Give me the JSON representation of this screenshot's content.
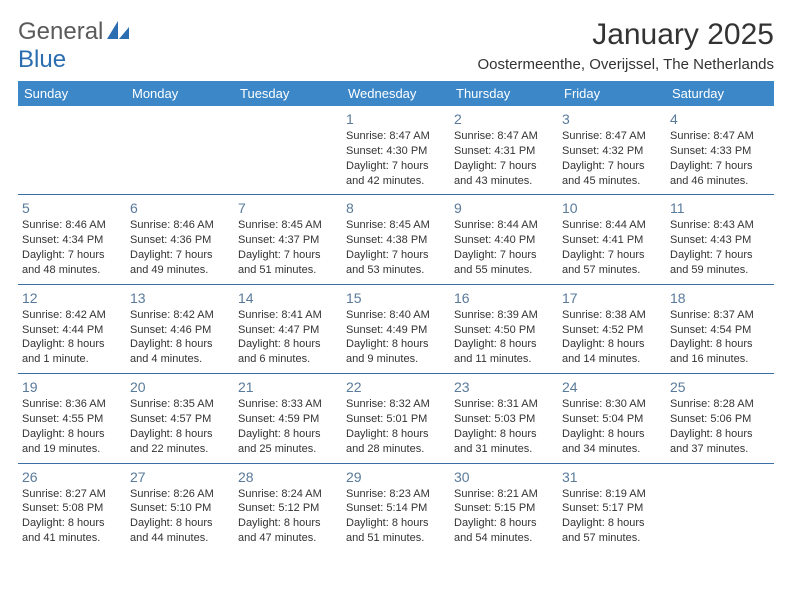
{
  "brand": {
    "part1": "General",
    "part2": "Blue"
  },
  "title": "January 2025",
  "location": "Oostermeenthe, Overijssel, The Netherlands",
  "colors": {
    "header_bg": "#3b87c8",
    "header_text": "#ffffff",
    "row_border": "#3b6ea5",
    "daynum": "#5a7a9a",
    "body_text": "#333333",
    "logo_gray": "#5a5a5a",
    "logo_blue": "#2a6db0"
  },
  "day_headers": [
    "Sunday",
    "Monday",
    "Tuesday",
    "Wednesday",
    "Thursday",
    "Friday",
    "Saturday"
  ],
  "weeks": [
    [
      {
        "n": "",
        "l1": "",
        "l2": "",
        "l3": "",
        "l4": ""
      },
      {
        "n": "",
        "l1": "",
        "l2": "",
        "l3": "",
        "l4": ""
      },
      {
        "n": "",
        "l1": "",
        "l2": "",
        "l3": "",
        "l4": ""
      },
      {
        "n": "1",
        "l1": "Sunrise: 8:47 AM",
        "l2": "Sunset: 4:30 PM",
        "l3": "Daylight: 7 hours",
        "l4": "and 42 minutes."
      },
      {
        "n": "2",
        "l1": "Sunrise: 8:47 AM",
        "l2": "Sunset: 4:31 PM",
        "l3": "Daylight: 7 hours",
        "l4": "and 43 minutes."
      },
      {
        "n": "3",
        "l1": "Sunrise: 8:47 AM",
        "l2": "Sunset: 4:32 PM",
        "l3": "Daylight: 7 hours",
        "l4": "and 45 minutes."
      },
      {
        "n": "4",
        "l1": "Sunrise: 8:47 AM",
        "l2": "Sunset: 4:33 PM",
        "l3": "Daylight: 7 hours",
        "l4": "and 46 minutes."
      }
    ],
    [
      {
        "n": "5",
        "l1": "Sunrise: 8:46 AM",
        "l2": "Sunset: 4:34 PM",
        "l3": "Daylight: 7 hours",
        "l4": "and 48 minutes."
      },
      {
        "n": "6",
        "l1": "Sunrise: 8:46 AM",
        "l2": "Sunset: 4:36 PM",
        "l3": "Daylight: 7 hours",
        "l4": "and 49 minutes."
      },
      {
        "n": "7",
        "l1": "Sunrise: 8:45 AM",
        "l2": "Sunset: 4:37 PM",
        "l3": "Daylight: 7 hours",
        "l4": "and 51 minutes."
      },
      {
        "n": "8",
        "l1": "Sunrise: 8:45 AM",
        "l2": "Sunset: 4:38 PM",
        "l3": "Daylight: 7 hours",
        "l4": "and 53 minutes."
      },
      {
        "n": "9",
        "l1": "Sunrise: 8:44 AM",
        "l2": "Sunset: 4:40 PM",
        "l3": "Daylight: 7 hours",
        "l4": "and 55 minutes."
      },
      {
        "n": "10",
        "l1": "Sunrise: 8:44 AM",
        "l2": "Sunset: 4:41 PM",
        "l3": "Daylight: 7 hours",
        "l4": "and 57 minutes."
      },
      {
        "n": "11",
        "l1": "Sunrise: 8:43 AM",
        "l2": "Sunset: 4:43 PM",
        "l3": "Daylight: 7 hours",
        "l4": "and 59 minutes."
      }
    ],
    [
      {
        "n": "12",
        "l1": "Sunrise: 8:42 AM",
        "l2": "Sunset: 4:44 PM",
        "l3": "Daylight: 8 hours",
        "l4": "and 1 minute."
      },
      {
        "n": "13",
        "l1": "Sunrise: 8:42 AM",
        "l2": "Sunset: 4:46 PM",
        "l3": "Daylight: 8 hours",
        "l4": "and 4 minutes."
      },
      {
        "n": "14",
        "l1": "Sunrise: 8:41 AM",
        "l2": "Sunset: 4:47 PM",
        "l3": "Daylight: 8 hours",
        "l4": "and 6 minutes."
      },
      {
        "n": "15",
        "l1": "Sunrise: 8:40 AM",
        "l2": "Sunset: 4:49 PM",
        "l3": "Daylight: 8 hours",
        "l4": "and 9 minutes."
      },
      {
        "n": "16",
        "l1": "Sunrise: 8:39 AM",
        "l2": "Sunset: 4:50 PM",
        "l3": "Daylight: 8 hours",
        "l4": "and 11 minutes."
      },
      {
        "n": "17",
        "l1": "Sunrise: 8:38 AM",
        "l2": "Sunset: 4:52 PM",
        "l3": "Daylight: 8 hours",
        "l4": "and 14 minutes."
      },
      {
        "n": "18",
        "l1": "Sunrise: 8:37 AM",
        "l2": "Sunset: 4:54 PM",
        "l3": "Daylight: 8 hours",
        "l4": "and 16 minutes."
      }
    ],
    [
      {
        "n": "19",
        "l1": "Sunrise: 8:36 AM",
        "l2": "Sunset: 4:55 PM",
        "l3": "Daylight: 8 hours",
        "l4": "and 19 minutes."
      },
      {
        "n": "20",
        "l1": "Sunrise: 8:35 AM",
        "l2": "Sunset: 4:57 PM",
        "l3": "Daylight: 8 hours",
        "l4": "and 22 minutes."
      },
      {
        "n": "21",
        "l1": "Sunrise: 8:33 AM",
        "l2": "Sunset: 4:59 PM",
        "l3": "Daylight: 8 hours",
        "l4": "and 25 minutes."
      },
      {
        "n": "22",
        "l1": "Sunrise: 8:32 AM",
        "l2": "Sunset: 5:01 PM",
        "l3": "Daylight: 8 hours",
        "l4": "and 28 minutes."
      },
      {
        "n": "23",
        "l1": "Sunrise: 8:31 AM",
        "l2": "Sunset: 5:03 PM",
        "l3": "Daylight: 8 hours",
        "l4": "and 31 minutes."
      },
      {
        "n": "24",
        "l1": "Sunrise: 8:30 AM",
        "l2": "Sunset: 5:04 PM",
        "l3": "Daylight: 8 hours",
        "l4": "and 34 minutes."
      },
      {
        "n": "25",
        "l1": "Sunrise: 8:28 AM",
        "l2": "Sunset: 5:06 PM",
        "l3": "Daylight: 8 hours",
        "l4": "and 37 minutes."
      }
    ],
    [
      {
        "n": "26",
        "l1": "Sunrise: 8:27 AM",
        "l2": "Sunset: 5:08 PM",
        "l3": "Daylight: 8 hours",
        "l4": "and 41 minutes."
      },
      {
        "n": "27",
        "l1": "Sunrise: 8:26 AM",
        "l2": "Sunset: 5:10 PM",
        "l3": "Daylight: 8 hours",
        "l4": "and 44 minutes."
      },
      {
        "n": "28",
        "l1": "Sunrise: 8:24 AM",
        "l2": "Sunset: 5:12 PM",
        "l3": "Daylight: 8 hours",
        "l4": "and 47 minutes."
      },
      {
        "n": "29",
        "l1": "Sunrise: 8:23 AM",
        "l2": "Sunset: 5:14 PM",
        "l3": "Daylight: 8 hours",
        "l4": "and 51 minutes."
      },
      {
        "n": "30",
        "l1": "Sunrise: 8:21 AM",
        "l2": "Sunset: 5:15 PM",
        "l3": "Daylight: 8 hours",
        "l4": "and 54 minutes."
      },
      {
        "n": "31",
        "l1": "Sunrise: 8:19 AM",
        "l2": "Sunset: 5:17 PM",
        "l3": "Daylight: 8 hours",
        "l4": "and 57 minutes."
      },
      {
        "n": "",
        "l1": "",
        "l2": "",
        "l3": "",
        "l4": ""
      }
    ]
  ]
}
